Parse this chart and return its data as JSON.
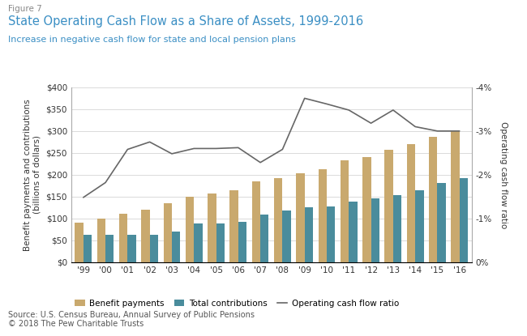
{
  "years": [
    "'99",
    "'00",
    "'01",
    "'02",
    "'03",
    "'04",
    "'05",
    "'06",
    "'07",
    "'08",
    "'09",
    "'10",
    "'11",
    "'12",
    "'13",
    "'14",
    "'15",
    "'16"
  ],
  "benefit_payments": [
    90,
    100,
    110,
    120,
    135,
    150,
    157,
    165,
    185,
    193,
    204,
    212,
    233,
    241,
    258,
    270,
    287,
    300
  ],
  "total_contributions": [
    63,
    63,
    63,
    62,
    70,
    88,
    88,
    92,
    108,
    118,
    125,
    128,
    138,
    145,
    153,
    165,
    182,
    192
  ],
  "operating_cash_flow": [
    -1.48,
    -1.82,
    -2.58,
    -2.75,
    -2.48,
    -2.6,
    -2.6,
    -2.62,
    -2.28,
    -2.58,
    -3.75,
    -3.62,
    -3.48,
    -3.18,
    -3.48,
    -3.1,
    -3.0,
    -3.0
  ],
  "benefit_color": "#C9A96E",
  "contrib_color": "#4A8C9C",
  "line_color": "#666666",
  "title_figure": "Figure 7",
  "title_main": "State Operating Cash Flow as a Share of Assets, 1999-2016",
  "title_sub": "Increase in negative cash flow for state and local pension plans",
  "ylabel_left": "Benefit payments and contributions\n(billions of dollars)",
  "ylabel_right": "Operating cash flow ratio",
  "source": "Source: U.S. Census Bureau, Annual Survey of Public Pensions\n© 2018 The Pew Charitable Trusts",
  "legend_benefit": "Benefit payments",
  "legend_contrib": "Total contributions",
  "legend_line": "Operating cash flow ratio",
  "ylim_left": [
    0,
    400
  ],
  "ylim_right": [
    0,
    -4
  ],
  "yticks_left": [
    0,
    50,
    100,
    150,
    200,
    250,
    300,
    350,
    400
  ],
  "ytick_labels_left": [
    "$0",
    "$50",
    "$100",
    "$150",
    "$200",
    "$250",
    "$300",
    "$350",
    "$400"
  ],
  "yticks_right": [
    0,
    -1,
    -2,
    -3,
    -4
  ],
  "ytick_labels_right": [
    "0%",
    "-1%",
    "-2%",
    "-3%",
    "-4%"
  ],
  "title_color": "#3B8FC4",
  "subtitle_color": "#3B8FC4",
  "figure_label_color": "#888888",
  "grid_color": "#CCCCCC"
}
